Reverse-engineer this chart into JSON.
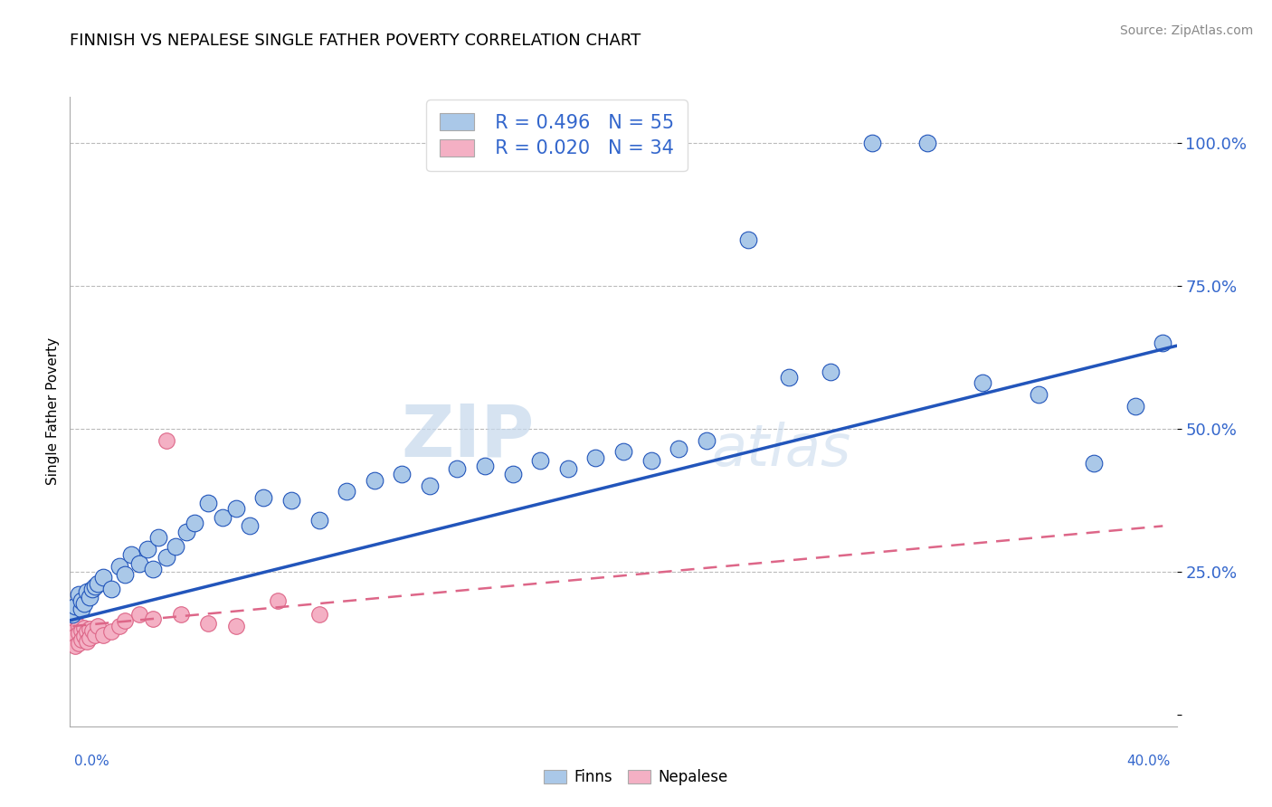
{
  "title": "FINNISH VS NEPALESE SINGLE FATHER POVERTY CORRELATION CHART",
  "source": "Source: ZipAtlas.com",
  "ylabel": "Single Father Poverty",
  "ytick_vals": [
    0.0,
    0.25,
    0.5,
    0.75,
    1.0
  ],
  "ytick_labels": [
    "",
    "25.0%",
    "50.0%",
    "75.0%",
    "100.0%"
  ],
  "xlim": [
    0.0,
    0.4
  ],
  "ylim": [
    -0.02,
    1.08
  ],
  "legend_r_finn": "R = 0.496",
  "legend_n_finn": "N = 55",
  "legend_r_nep": "R = 0.020",
  "legend_n_nep": "N = 34",
  "finn_color": "#aac8e8",
  "nep_color": "#f4b0c4",
  "finn_line_color": "#2255bb",
  "nep_line_color": "#dd6688",
  "watermark_zip": "ZIP",
  "watermark_atlas": "atlas",
  "finn_scatter_x": [
    0.001,
    0.002,
    0.003,
    0.004,
    0.004,
    0.005,
    0.006,
    0.007,
    0.008,
    0.009,
    0.01,
    0.012,
    0.015,
    0.018,
    0.02,
    0.022,
    0.025,
    0.028,
    0.03,
    0.032,
    0.035,
    0.038,
    0.042,
    0.045,
    0.05,
    0.055,
    0.06,
    0.065,
    0.07,
    0.08,
    0.09,
    0.1,
    0.11,
    0.12,
    0.13,
    0.14,
    0.15,
    0.16,
    0.17,
    0.18,
    0.19,
    0.2,
    0.21,
    0.22,
    0.23,
    0.245,
    0.26,
    0.275,
    0.29,
    0.31,
    0.33,
    0.35,
    0.37,
    0.385,
    0.395
  ],
  "finn_scatter_y": [
    0.175,
    0.19,
    0.21,
    0.185,
    0.2,
    0.195,
    0.215,
    0.205,
    0.22,
    0.225,
    0.23,
    0.24,
    0.22,
    0.26,
    0.245,
    0.28,
    0.265,
    0.29,
    0.255,
    0.31,
    0.275,
    0.295,
    0.32,
    0.335,
    0.37,
    0.345,
    0.36,
    0.33,
    0.38,
    0.375,
    0.34,
    0.39,
    0.41,
    0.42,
    0.4,
    0.43,
    0.435,
    0.42,
    0.445,
    0.43,
    0.45,
    0.46,
    0.445,
    0.465,
    0.48,
    0.83,
    0.59,
    0.6,
    1.0,
    1.0,
    0.58,
    0.56,
    0.44,
    0.54,
    0.65
  ],
  "nep_scatter_x": [
    0.001,
    0.001,
    0.001,
    0.001,
    0.002,
    0.002,
    0.002,
    0.002,
    0.003,
    0.003,
    0.003,
    0.004,
    0.004,
    0.005,
    0.005,
    0.006,
    0.006,
    0.007,
    0.007,
    0.008,
    0.009,
    0.01,
    0.012,
    0.015,
    0.018,
    0.02,
    0.025,
    0.03,
    0.035,
    0.04,
    0.05,
    0.06,
    0.075,
    0.09
  ],
  "nep_scatter_y": [
    0.165,
    0.155,
    0.145,
    0.13,
    0.16,
    0.148,
    0.138,
    0.12,
    0.155,
    0.142,
    0.125,
    0.148,
    0.132,
    0.152,
    0.138,
    0.145,
    0.128,
    0.15,
    0.135,
    0.148,
    0.14,
    0.155,
    0.14,
    0.145,
    0.155,
    0.165,
    0.175,
    0.168,
    0.48,
    0.175,
    0.16,
    0.155,
    0.2,
    0.175
  ],
  "finn_trendline": [
    0.0,
    0.4,
    0.165,
    0.645
  ],
  "nep_trendline": [
    0.001,
    0.395,
    0.155,
    0.33
  ]
}
